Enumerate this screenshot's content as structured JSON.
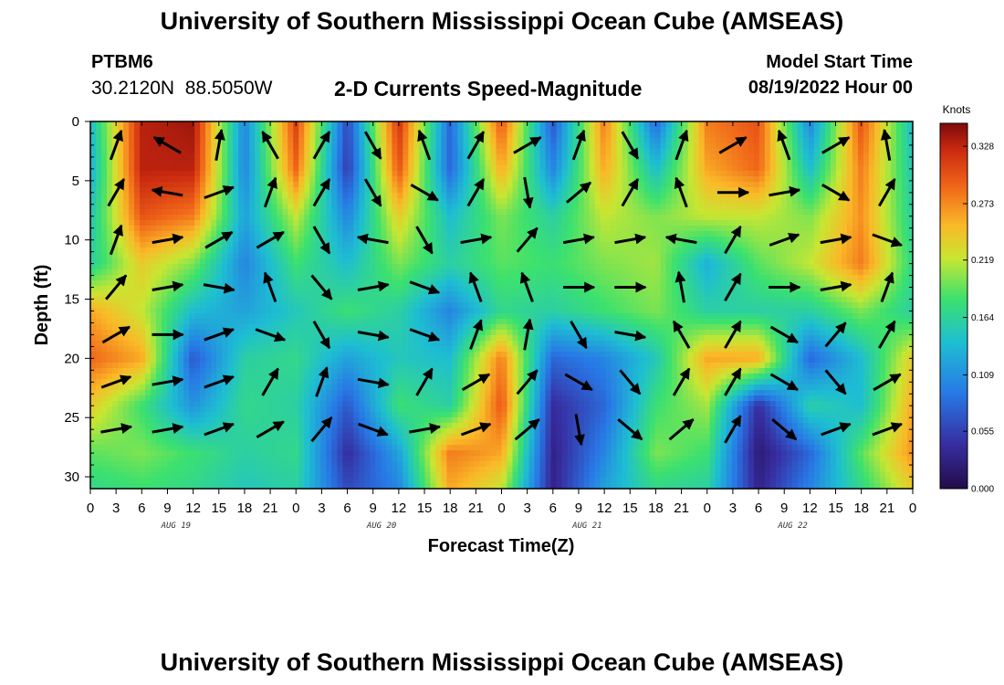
{
  "header": {
    "title": "University of Southern Mississippi Ocean Cube (AMSEAS)",
    "station_id": "PTBM6",
    "station_coords": "30.2120N  88.5050W",
    "subtitle": "2-D Currents Speed-Magnitude",
    "model_label": "Model Start Time",
    "model_time": "08/19/2022 Hour 00"
  },
  "footer": {
    "title": "University of Southern Mississippi Ocean Cube (AMSEAS)"
  },
  "chart_data": {
    "type": "heatmap",
    "title": "2-D Currents Speed-Magnitude",
    "xlabel": "Forecast Time(Z)",
    "ylabel": "Depth (ft)",
    "colorbar_label": "Knots",
    "colorbar_ticks": [
      "0.328",
      "0.273",
      "0.219",
      "0.164",
      "0.109",
      "0.055",
      "0.000"
    ],
    "colorbar_range": [
      0.0,
      0.35
    ],
    "x_tick_labels": [
      "0",
      "3",
      "6",
      "9",
      "12",
      "15",
      "18",
      "21",
      "0",
      "3",
      "6",
      "9",
      "12",
      "15",
      "18",
      "21",
      "0",
      "3",
      "6",
      "9",
      "12",
      "15",
      "18",
      "21",
      "0",
      "3",
      "6",
      "9",
      "12",
      "15",
      "18",
      "21",
      "0"
    ],
    "x_range_hours": [
      0,
      96
    ],
    "day_labels": [
      {
        "label": "AUG 19",
        "hour": 10
      },
      {
        "label": "AUG 20",
        "hour": 34
      },
      {
        "label": "AUG 21",
        "hour": 58
      },
      {
        "label": "AUG 22",
        "hour": 82
      }
    ],
    "y_tick_labels": [
      "0",
      "5",
      "10",
      "15",
      "20",
      "25",
      "30"
    ],
    "y_range_ft": [
      0,
      31
    ],
    "depths_ft": [
      0,
      4,
      8,
      12,
      16,
      20,
      24,
      28,
      31
    ],
    "times_h": [
      0,
      6,
      12,
      18,
      24,
      30,
      36,
      42,
      48,
      54,
      60,
      66,
      72,
      78,
      84,
      90,
      96
    ],
    "speed_knots": [
      [
        0.14,
        0.33,
        0.34,
        0.1,
        0.31,
        0.06,
        0.32,
        0.08,
        0.3,
        0.07,
        0.28,
        0.08,
        0.28,
        0.3,
        0.1,
        0.3,
        0.14
      ],
      [
        0.13,
        0.33,
        0.33,
        0.1,
        0.29,
        0.05,
        0.3,
        0.08,
        0.26,
        0.1,
        0.26,
        0.14,
        0.26,
        0.29,
        0.14,
        0.28,
        0.15
      ],
      [
        0.15,
        0.3,
        0.28,
        0.12,
        0.22,
        0.1,
        0.24,
        0.14,
        0.2,
        0.16,
        0.22,
        0.2,
        0.22,
        0.22,
        0.2,
        0.27,
        0.16
      ],
      [
        0.16,
        0.24,
        0.2,
        0.1,
        0.18,
        0.14,
        0.2,
        0.16,
        0.19,
        0.18,
        0.2,
        0.21,
        0.13,
        0.19,
        0.22,
        0.28,
        0.17
      ],
      [
        0.26,
        0.22,
        0.14,
        0.12,
        0.15,
        0.18,
        0.16,
        0.1,
        0.17,
        0.16,
        0.18,
        0.2,
        0.16,
        0.16,
        0.16,
        0.2,
        0.16
      ],
      [
        0.29,
        0.26,
        0.07,
        0.16,
        0.17,
        0.12,
        0.15,
        0.14,
        0.28,
        0.08,
        0.1,
        0.15,
        0.26,
        0.26,
        0.08,
        0.14,
        0.24
      ],
      [
        0.24,
        0.18,
        0.11,
        0.17,
        0.16,
        0.07,
        0.18,
        0.16,
        0.3,
        0.04,
        0.08,
        0.18,
        0.21,
        0.04,
        0.16,
        0.14,
        0.26
      ],
      [
        0.19,
        0.2,
        0.18,
        0.16,
        0.17,
        0.04,
        0.12,
        0.28,
        0.26,
        0.03,
        0.1,
        0.2,
        0.18,
        0.02,
        0.08,
        0.19,
        0.27
      ],
      [
        0.17,
        0.18,
        0.17,
        0.15,
        0.16,
        0.06,
        0.1,
        0.26,
        0.22,
        0.03,
        0.12,
        0.17,
        0.16,
        0.03,
        0.1,
        0.17,
        0.24
      ]
    ],
    "vector_depths_ft": [
      2,
      6,
      10,
      14,
      18,
      22,
      26
    ],
    "vector_times_h": [
      3,
      9,
      15,
      21,
      27,
      33,
      39,
      45,
      51,
      57,
      63,
      69,
      75,
      81,
      87,
      93
    ],
    "vector_direction_deg": [
      [
        20,
        300,
        10,
        330,
        30,
        150,
        340,
        30,
        60,
        20,
        150,
        20,
        60,
        340,
        60,
        350
      ],
      [
        30,
        280,
        70,
        20,
        30,
        150,
        120,
        30,
        170,
        50,
        30,
        340,
        90,
        80,
        120,
        30
      ],
      [
        20,
        80,
        60,
        60,
        150,
        280,
        150,
        80,
        40,
        80,
        80,
        280,
        30,
        70,
        80,
        110
      ],
      [
        40,
        80,
        100,
        340,
        140,
        80,
        110,
        340,
        340,
        90,
        90,
        350,
        30,
        90,
        80,
        20
      ],
      [
        60,
        90,
        70,
        110,
        150,
        100,
        110,
        20,
        10,
        150,
        100,
        330,
        30,
        120,
        40,
        30
      ],
      [
        70,
        80,
        70,
        30,
        20,
        100,
        30,
        60,
        40,
        120,
        140,
        30,
        30,
        120,
        140,
        60
      ],
      [
        80,
        80,
        70,
        60,
        40,
        110,
        80,
        70,
        50,
        170,
        130,
        50,
        30,
        130,
        70,
        70
      ]
    ]
  }
}
